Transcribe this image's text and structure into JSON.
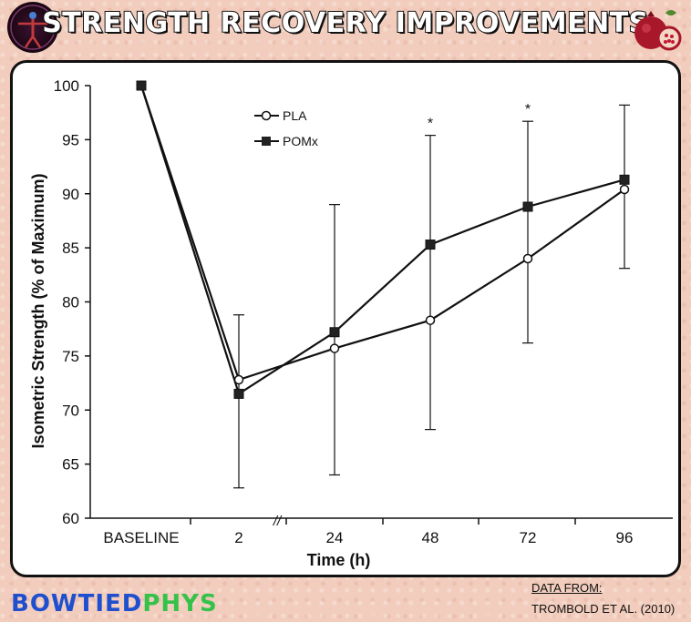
{
  "header": {
    "title": "STRENGTH RECOVERY IMPROVEMENTS"
  },
  "brand": {
    "part1": "BOWTIED",
    "part2": "PHYS"
  },
  "source": {
    "label": "DATA FROM:",
    "ref": "TROMBOLD ET AL. (2010)"
  },
  "chart_data": {
    "type": "line",
    "title": "",
    "xlabel": "Time (h)",
    "ylabel": "Isometric Strength (% of Maximum)",
    "categories": [
      "BASELINE",
      "2",
      "24",
      "48",
      "72",
      "96"
    ],
    "axis_break_label": "//",
    "ylim": [
      60,
      100
    ],
    "yticks": [
      60,
      65,
      70,
      75,
      80,
      85,
      90,
      95,
      100
    ],
    "grid": false,
    "legend_position": "top-left",
    "series": [
      {
        "name": "PLA",
        "marker": "open-circle",
        "values": [
          100,
          72.8,
          75.7,
          78.3,
          84.0,
          90.4
        ]
      },
      {
        "name": "POMx",
        "marker": "filled-square",
        "values": [
          100,
          71.5,
          77.2,
          85.3,
          88.8,
          91.3
        ]
      }
    ],
    "error_bars": [
      {
        "x": "2",
        "low": 62.8,
        "high": 78.8
      },
      {
        "x": "24",
        "low": 64.0,
        "high": 89.0
      },
      {
        "x": "48",
        "low": 68.2,
        "high": 95.4
      },
      {
        "x": "72",
        "low": 76.2,
        "high": 96.7
      },
      {
        "x": "96",
        "low": 83.1,
        "high": 98.2
      }
    ],
    "annotations": [
      {
        "x": "48",
        "text": "*"
      },
      {
        "x": "72",
        "text": "*"
      }
    ]
  }
}
